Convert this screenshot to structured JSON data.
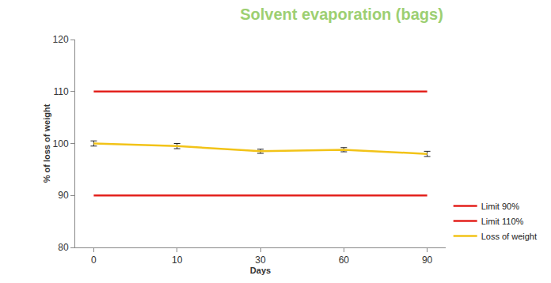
{
  "chart_data": {
    "type": "line",
    "title": "Solvent evaporation (bags)",
    "x_label": "Days",
    "y_label": "% of loss of weight",
    "categories": [
      "0",
      "10",
      "30",
      "60",
      "90"
    ],
    "series": [
      {
        "name": "Limit 90%",
        "color": "#e3211c",
        "values": [
          90,
          90,
          90,
          90,
          90
        ]
      },
      {
        "name": "Limit 110%",
        "color": "#e3211c",
        "values": [
          110,
          110,
          110,
          110,
          110
        ]
      },
      {
        "name": "Loss of weight",
        "color": "#f2c318",
        "values": [
          100,
          99.5,
          98.5,
          98.8,
          98.0
        ],
        "error": [
          0.5,
          0.5,
          0.4,
          0.4,
          0.5
        ]
      }
    ],
    "ylim": [
      80,
      120
    ],
    "yticks": [
      80,
      90,
      100,
      110,
      120
    ],
    "grid": false,
    "legend": "lower right"
  }
}
